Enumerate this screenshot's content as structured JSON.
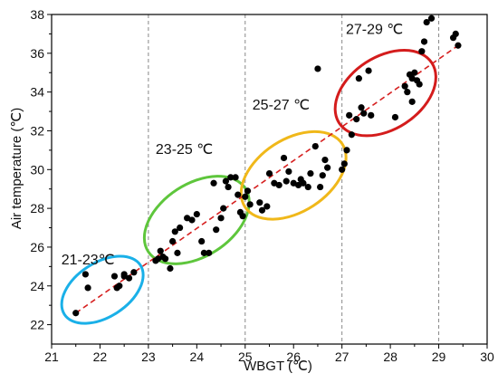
{
  "chart_data": {
    "type": "scatter",
    "title": "",
    "xlabel": "WBGT (℃)",
    "ylabel": "Air temperature (℃)",
    "xlim": [
      21,
      30
    ],
    "ylim": [
      21,
      38
    ],
    "x_ticks": [
      "21",
      "22",
      "23",
      "24",
      "25",
      "26",
      "27",
      "28",
      "29",
      "30"
    ],
    "y_ticks": [
      "22",
      "24",
      "26",
      "28",
      "30",
      "32",
      "34",
      "36",
      "38"
    ],
    "grid": false,
    "vertical_dashed_lines_at": [
      23,
      25,
      27,
      29
    ],
    "trend_line": {
      "style": "dashed",
      "color": "#d62020",
      "from": [
        21.5,
        22.6
      ],
      "to": [
        29.4,
        36.4
      ]
    },
    "zones": [
      {
        "label": "21-23℃",
        "color": "#1ab0e8"
      },
      {
        "label": "23-25 ℃",
        "color": "#5ec63c"
      },
      {
        "label": "25-27 ℃",
        "color": "#f0b81a"
      },
      {
        "label": "27-29 ℃",
        "color": "#d41c1c"
      }
    ],
    "point_color": "#000000",
    "points": [
      [
        21.5,
        22.6
      ],
      [
        21.7,
        24.6
      ],
      [
        21.75,
        23.9
      ],
      [
        22.3,
        24.5
      ],
      [
        22.35,
        23.9
      ],
      [
        22.4,
        24.0
      ],
      [
        22.5,
        24.6
      ],
      [
        22.5,
        24.5
      ],
      [
        22.6,
        24.4
      ],
      [
        22.7,
        24.7
      ],
      [
        23.15,
        25.3
      ],
      [
        23.2,
        25.4
      ],
      [
        23.25,
        25.8
      ],
      [
        23.3,
        25.5
      ],
      [
        23.35,
        25.4
      ],
      [
        23.45,
        24.9
      ],
      [
        23.5,
        26.3
      ],
      [
        23.55,
        26.8
      ],
      [
        23.6,
        25.7
      ],
      [
        23.65,
        27.0
      ],
      [
        23.8,
        27.5
      ],
      [
        23.9,
        27.4
      ],
      [
        24.0,
        27.7
      ],
      [
        24.1,
        26.3
      ],
      [
        24.15,
        25.7
      ],
      [
        24.25,
        25.7
      ],
      [
        24.35,
        29.3
      ],
      [
        24.4,
        26.9
      ],
      [
        24.5,
        27.5
      ],
      [
        24.55,
        28.0
      ],
      [
        24.6,
        29.4
      ],
      [
        24.65,
        29.1
      ],
      [
        24.7,
        29.6
      ],
      [
        24.8,
        29.6
      ],
      [
        24.85,
        28.7
      ],
      [
        24.9,
        27.8
      ],
      [
        24.95,
        27.6
      ],
      [
        25.0,
        28.6
      ],
      [
        25.05,
        28.9
      ],
      [
        25.1,
        28.2
      ],
      [
        25.3,
        28.3
      ],
      [
        25.35,
        27.9
      ],
      [
        25.45,
        28.1
      ],
      [
        25.5,
        29.8
      ],
      [
        25.6,
        29.3
      ],
      [
        25.7,
        29.2
      ],
      [
        25.8,
        30.6
      ],
      [
        25.85,
        29.4
      ],
      [
        25.9,
        29.9
      ],
      [
        26.0,
        29.3
      ],
      [
        26.1,
        29.2
      ],
      [
        26.15,
        29.5
      ],
      [
        26.2,
        29.3
      ],
      [
        26.3,
        29.1
      ],
      [
        26.35,
        29.8
      ],
      [
        26.45,
        31.2
      ],
      [
        26.5,
        35.2
      ],
      [
        26.55,
        29.1
      ],
      [
        26.6,
        29.7
      ],
      [
        26.65,
        30.5
      ],
      [
        26.7,
        30.1
      ],
      [
        27.0,
        30.0
      ],
      [
        27.05,
        30.3
      ],
      [
        27.1,
        31.0
      ],
      [
        27.15,
        32.8
      ],
      [
        27.2,
        31.8
      ],
      [
        27.3,
        32.6
      ],
      [
        27.35,
        34.7
      ],
      [
        27.4,
        33.2
      ],
      [
        27.45,
        32.9
      ],
      [
        27.55,
        35.1
      ],
      [
        27.6,
        32.8
      ],
      [
        28.1,
        32.7
      ],
      [
        28.3,
        34.3
      ],
      [
        28.35,
        34.0
      ],
      [
        28.4,
        34.9
      ],
      [
        28.45,
        34.7
      ],
      [
        28.5,
        35.0
      ],
      [
        28.55,
        34.6
      ],
      [
        28.6,
        34.4
      ],
      [
        28.65,
        36.1
      ],
      [
        28.7,
        36.6
      ],
      [
        28.75,
        37.6
      ],
      [
        28.85,
        37.8
      ],
      [
        28.45,
        33.5
      ],
      [
        29.3,
        36.8
      ],
      [
        29.35,
        37.0
      ],
      [
        29.4,
        36.4
      ]
    ]
  }
}
